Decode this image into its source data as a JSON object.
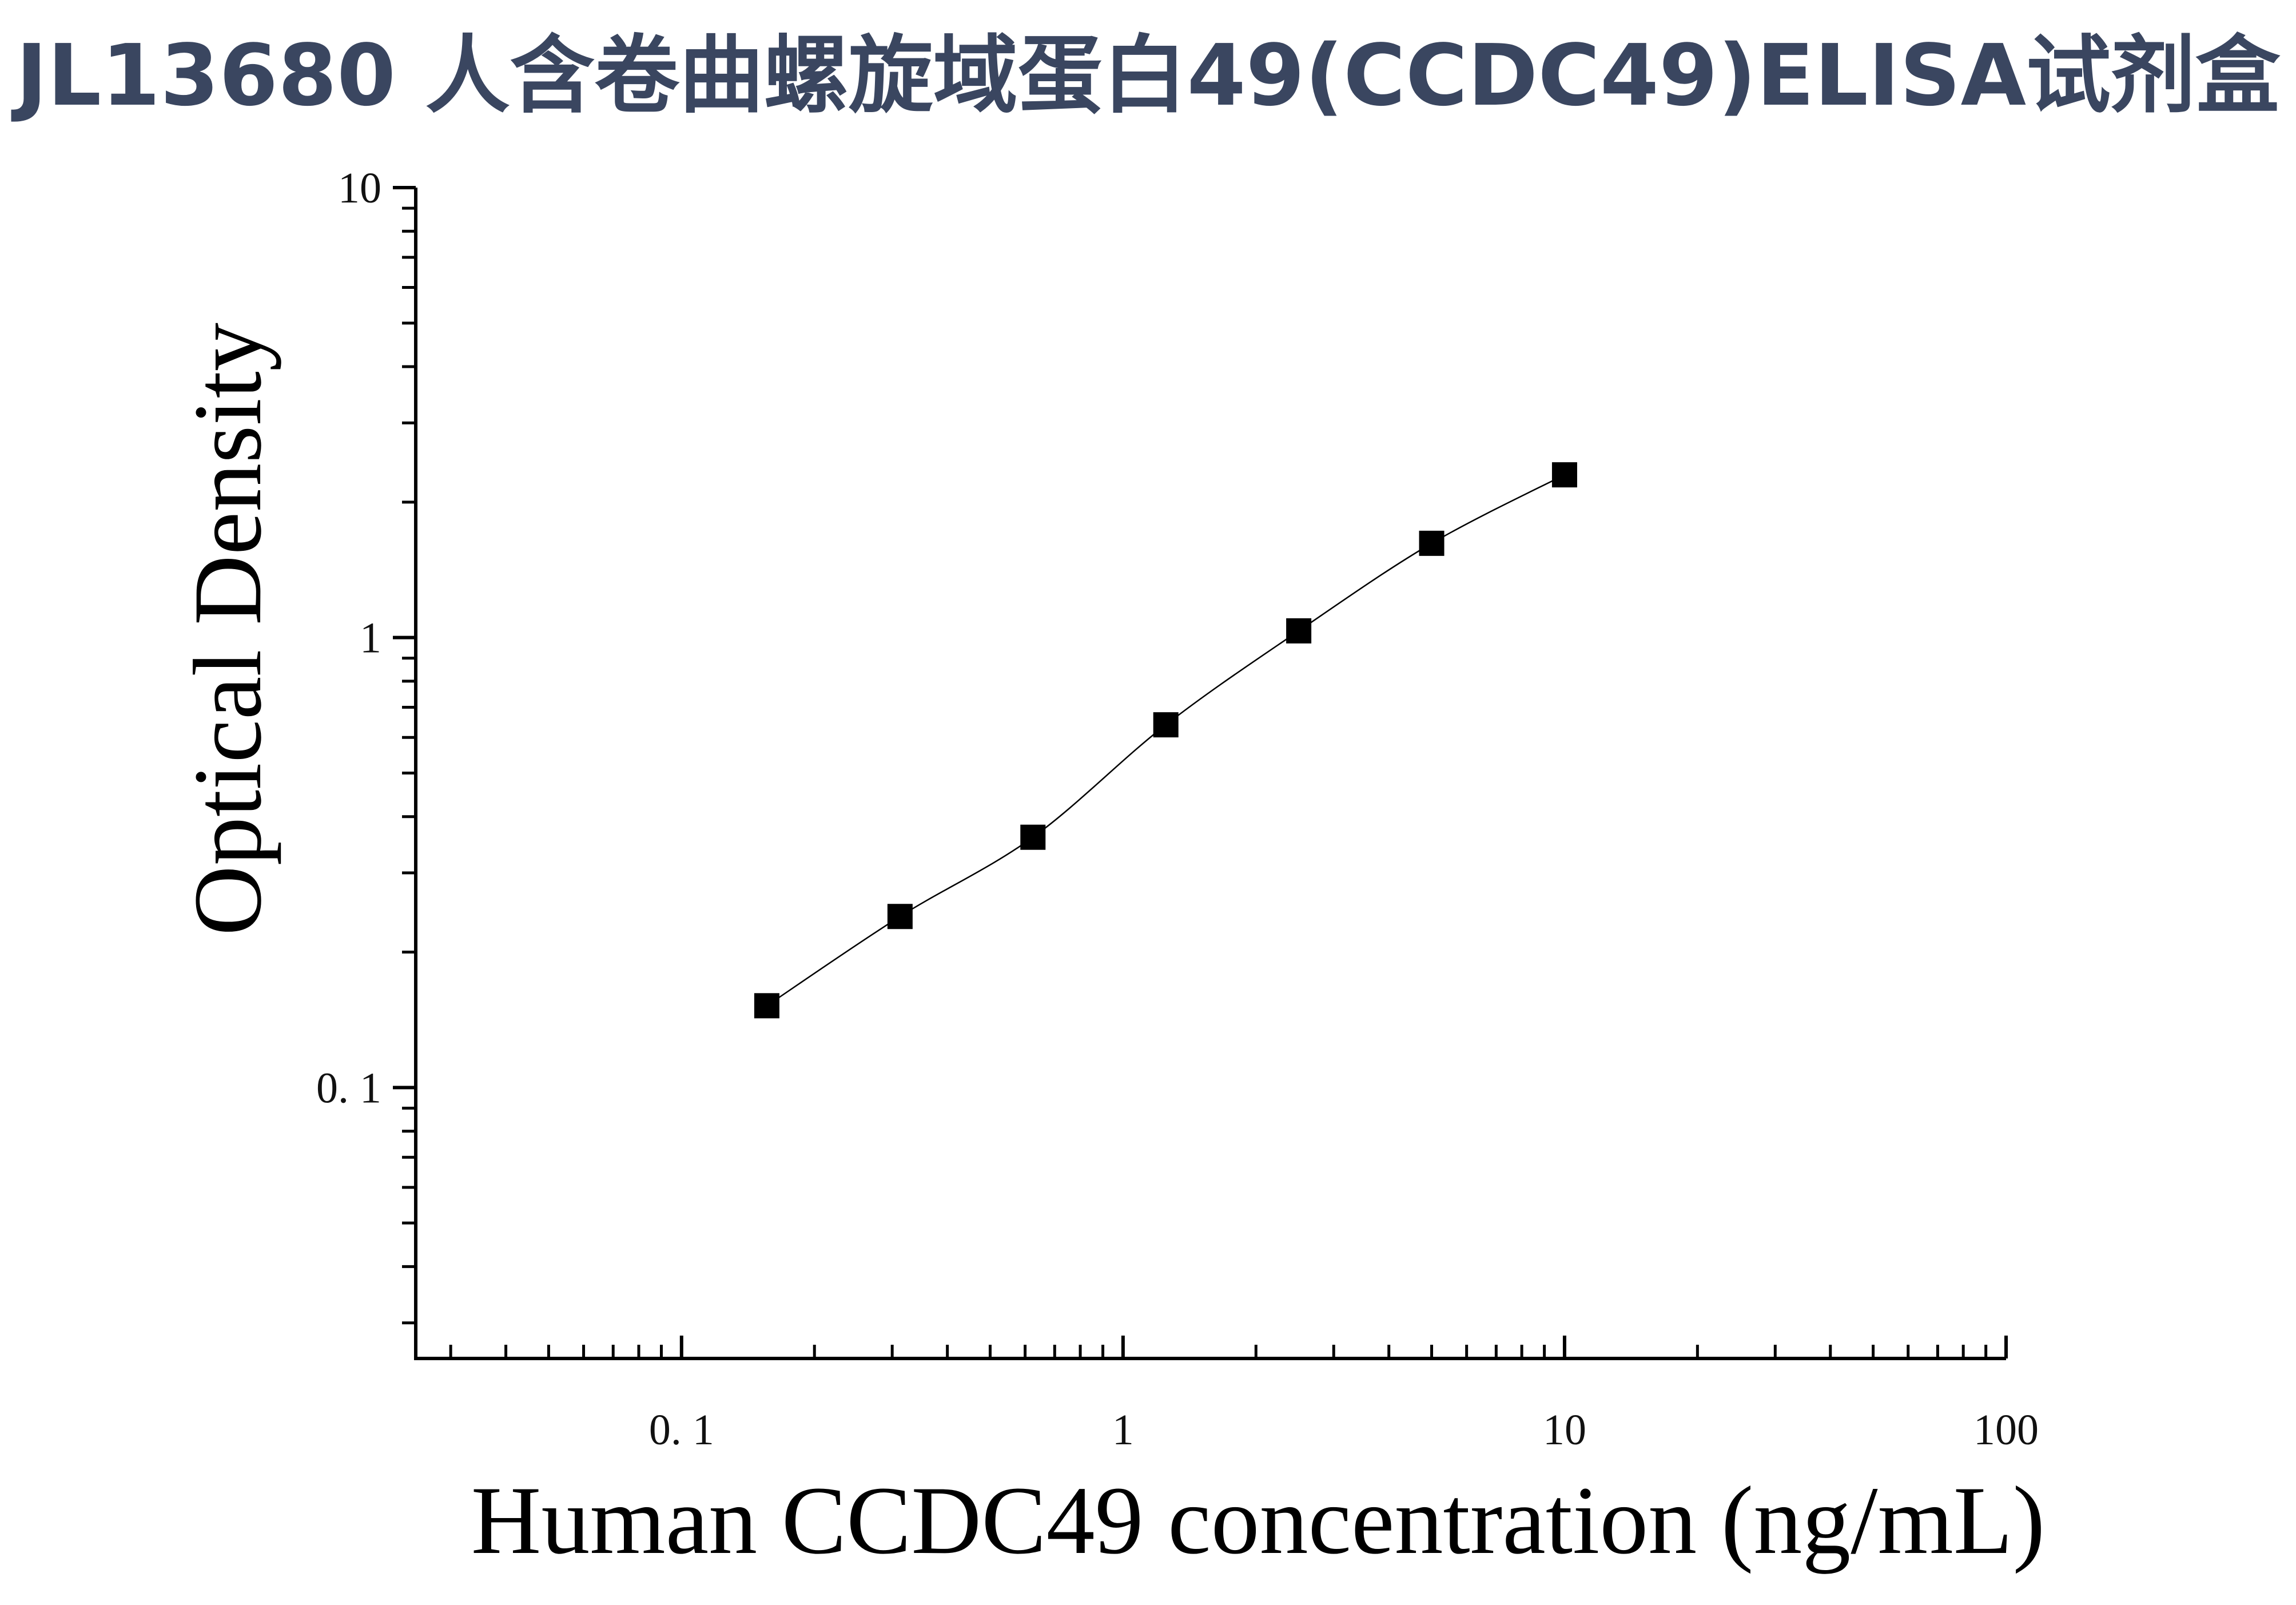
{
  "chart_data": {
    "type": "scatter",
    "title": "JL13680 人含卷曲螺旋域蛋白49(CCDC49)ELISA试剂盒",
    "xlabel": "Human CCDC49 concentration (ng/mL)",
    "ylabel": "Optical Density",
    "x_scale": "log",
    "y_scale": "log",
    "xlim": [
      0.025,
      100
    ],
    "ylim": [
      0.025,
      10
    ],
    "x_ticks": [
      {
        "value": 0.1,
        "label": "0. 1"
      },
      {
        "value": 1,
        "label": "1"
      },
      {
        "value": 10,
        "label": "10"
      },
      {
        "value": 100,
        "label": "100"
      }
    ],
    "y_ticks": [
      {
        "value": 0.1,
        "label": "0. 1"
      },
      {
        "value": 1,
        "label": "1"
      },
      {
        "value": 10,
        "label": "10"
      }
    ],
    "grid": false,
    "legend": "none",
    "marker": "square",
    "fit_curve": true,
    "series": [
      {
        "x": [
          0.156,
          0.3125,
          0.625,
          1.25,
          2.5,
          5,
          10
        ],
        "y": [
          0.152,
          0.24,
          0.36,
          0.64,
          1.035,
          1.62,
          2.3
        ]
      }
    ],
    "colors": {
      "title": "#3a4660",
      "axis": "#000000",
      "marker": "#000000",
      "curve": "#000000"
    }
  }
}
